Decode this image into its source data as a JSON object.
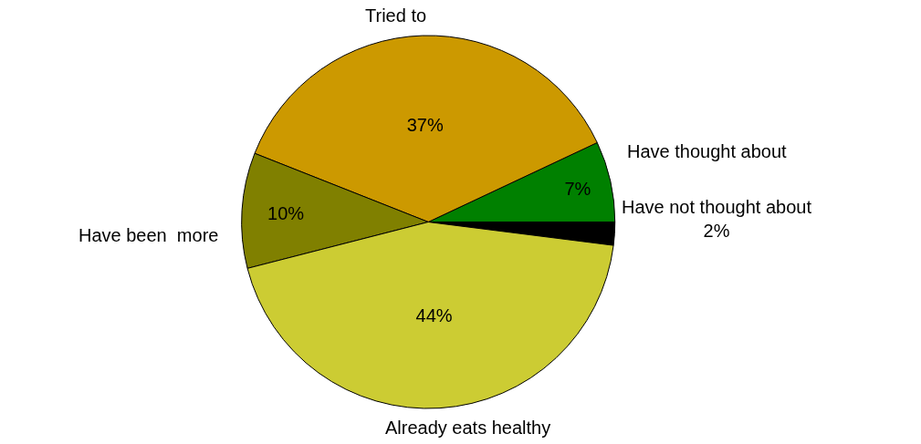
{
  "chart_data": {
    "type": "pie",
    "categories": [
      "Have not thought about",
      "Have thought about",
      "Tried to",
      "Have been  more",
      "Already eats healthy"
    ],
    "values": [
      2,
      7,
      37,
      10,
      44
    ],
    "value_labels": [
      "2%",
      "7%",
      "37%",
      "10%",
      "44%"
    ],
    "colors": [
      "#000000",
      "#008000",
      "#cc9900",
      "#808000",
      "#cccc33"
    ],
    "legend": false
  }
}
